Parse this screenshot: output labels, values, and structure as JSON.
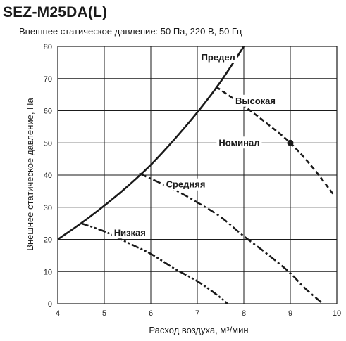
{
  "chart_data": {
    "type": "line",
    "title": "SEZ-M25DA(L)",
    "subtitle": "Внешнее статическое давление: 50 Па, 220 В, 50 Гц",
    "xlabel": "Расход воздуха, м³/мин",
    "ylabel": "Внешнее статическое давление, Па",
    "xlim": [
      4,
      10
    ],
    "ylim": [
      0,
      80
    ],
    "x_ticks": [
      4,
      5,
      6,
      7,
      8,
      9,
      10
    ],
    "y_ticks": [
      0,
      10,
      20,
      30,
      40,
      50,
      60,
      70,
      80
    ],
    "grid": true,
    "series": [
      {
        "name": "Предел",
        "style": "solid",
        "points": [
          [
            4.0,
            20.0
          ],
          [
            4.5,
            25.0
          ],
          [
            5.0,
            30.5
          ],
          [
            5.5,
            36.5
          ],
          [
            6.0,
            43.2
          ],
          [
            6.5,
            51.0
          ],
          [
            7.0,
            59.5
          ],
          [
            7.5,
            69.0
          ],
          [
            8.0,
            80.0
          ]
        ]
      },
      {
        "name": "Высокая",
        "style": "dashed",
        "points": [
          [
            7.4,
            67.5
          ],
          [
            8.0,
            61.5
          ],
          [
            8.5,
            56.0
          ],
          [
            9.0,
            50.0
          ],
          [
            9.5,
            42.0
          ],
          [
            9.95,
            33.5
          ]
        ]
      },
      {
        "name": "Средняя",
        "style": "dashdot",
        "points": [
          [
            5.75,
            40.5
          ],
          [
            6.5,
            35.5
          ],
          [
            7.0,
            31.5
          ],
          [
            7.5,
            27.0
          ],
          [
            8.0,
            21.0
          ],
          [
            8.5,
            15.5
          ],
          [
            9.0,
            9.5
          ],
          [
            9.3,
            5.0
          ],
          [
            9.7,
            0.0
          ]
        ]
      },
      {
        "name": "Низкая",
        "style": "dashdotdot",
        "points": [
          [
            4.5,
            25.0
          ],
          [
            5.0,
            22.5
          ],
          [
            5.5,
            19.0
          ],
          [
            6.0,
            15.5
          ],
          [
            6.5,
            11.0
          ],
          [
            7.0,
            7.0
          ],
          [
            7.4,
            3.0
          ],
          [
            7.65,
            0.0
          ]
        ]
      }
    ],
    "annotations": [
      {
        "text": "Предел",
        "x": 7.45,
        "y": 76.5
      },
      {
        "text": "Высокая",
        "x": 8.25,
        "y": 63.0
      },
      {
        "text": "Номинал",
        "x": 7.9,
        "y": 50.0
      },
      {
        "text": "Средняя",
        "x": 6.75,
        "y": 37.0
      },
      {
        "text": "Низкая",
        "x": 5.55,
        "y": 22.0
      }
    ],
    "markers": [
      {
        "name": "Номинал",
        "x": 9.0,
        "y": 50.0
      }
    ]
  }
}
